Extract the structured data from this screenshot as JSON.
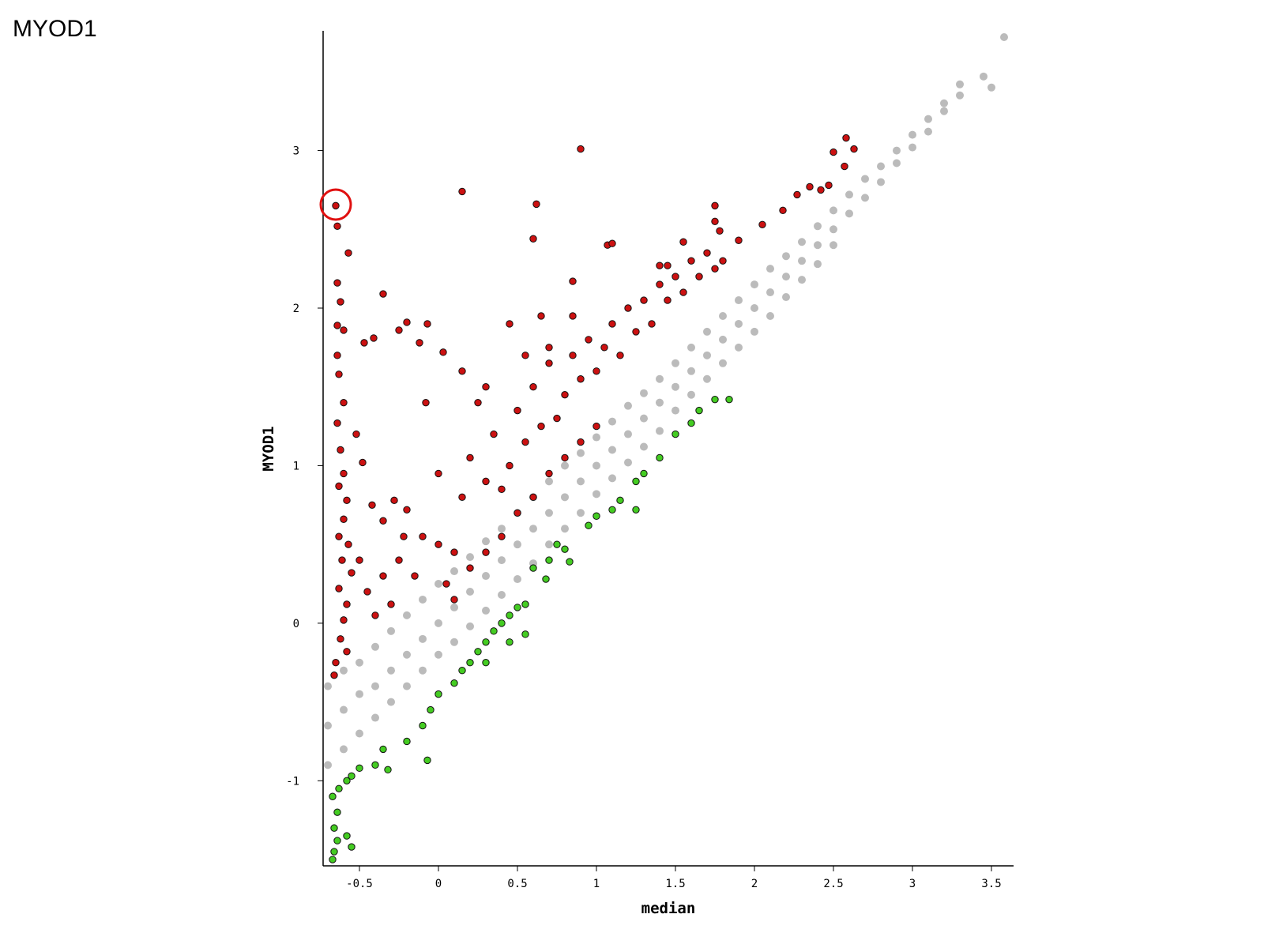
{
  "title": "MYOD1",
  "chart_data": {
    "type": "scatter",
    "x_label": "median",
    "y_label": "MYOD1",
    "xlim": [
      -0.73,
      3.64
    ],
    "ylim": [
      -1.54,
      3.76
    ],
    "xticks": [
      -0.5,
      0,
      0.5,
      1,
      1.5,
      2,
      2.5,
      3,
      3.5
    ],
    "yticks": [
      -1,
      0,
      1,
      2,
      3
    ],
    "series": [
      {
        "color": "#bbbbbb",
        "x": [
          -0.7,
          -0.7,
          -0.7,
          -0.6,
          -0.6,
          -0.6,
          -0.5,
          -0.5,
          -0.5,
          -0.4,
          -0.4,
          -0.4,
          -0.3,
          -0.3,
          -0.3,
          -0.2,
          -0.2,
          -0.2,
          -0.1,
          -0.1,
          -0.1,
          0,
          0,
          0,
          0.1,
          0.1,
          0.1,
          0.2,
          0.2,
          0.2,
          0.3,
          0.3,
          0.3,
          0.4,
          0.4,
          0.4,
          0.5,
          0.5,
          0.5,
          0.6,
          0.6,
          0.6,
          0.7,
          0.7,
          0.7,
          0.8,
          0.8,
          0.8,
          0.9,
          0.9,
          0.9,
          1.0,
          1.0,
          1.0,
          1.1,
          1.1,
          1.1,
          1.2,
          1.2,
          1.2,
          1.3,
          1.3,
          1.3,
          1.4,
          1.4,
          1.4,
          1.5,
          1.5,
          1.5,
          1.6,
          1.6,
          1.6,
          1.7,
          1.7,
          1.7,
          1.8,
          1.8,
          1.8,
          1.9,
          1.9,
          1.9,
          2.0,
          2.0,
          2.0,
          2.1,
          2.1,
          2.1,
          2.2,
          2.2,
          2.2,
          2.3,
          2.3,
          2.3,
          2.4,
          2.4,
          2.4,
          2.5,
          2.5,
          2.5,
          2.6,
          2.6,
          2.7,
          2.7,
          2.8,
          2.8,
          2.9,
          2.9,
          3.0,
          3.0,
          3.1,
          3.1,
          3.2,
          3.2,
          3.3,
          3.3,
          3.45,
          3.5,
          3.58
        ],
        "values": [
          -0.4,
          -0.65,
          -0.9,
          -0.3,
          -0.55,
          -0.8,
          -0.25,
          -0.45,
          -0.7,
          -0.15,
          -0.4,
          -0.6,
          -0.05,
          -0.3,
          -0.5,
          0.05,
          -0.2,
          -0.4,
          0.15,
          -0.1,
          -0.3,
          0.25,
          0.0,
          -0.2,
          0.33,
          0.1,
          -0.12,
          0.42,
          0.2,
          -0.02,
          0.52,
          0.3,
          0.08,
          0.6,
          0.4,
          0.18,
          0.7,
          0.5,
          0.28,
          0.8,
          0.6,
          0.38,
          0.9,
          0.7,
          0.5,
          1.0,
          0.8,
          0.6,
          1.08,
          0.9,
          0.7,
          1.18,
          1.0,
          0.82,
          1.28,
          1.1,
          0.92,
          1.38,
          1.2,
          1.02,
          1.46,
          1.3,
          1.12,
          1.55,
          1.4,
          1.22,
          1.65,
          1.5,
          1.35,
          1.75,
          1.6,
          1.45,
          1.85,
          1.7,
          1.55,
          1.95,
          1.8,
          1.65,
          2.05,
          1.9,
          1.75,
          2.15,
          2.0,
          1.85,
          2.25,
          2.1,
          1.95,
          2.33,
          2.2,
          2.07,
          2.42,
          2.3,
          2.18,
          2.52,
          2.4,
          2.28,
          2.62,
          2.5,
          2.4,
          2.72,
          2.6,
          2.82,
          2.7,
          2.9,
          2.8,
          3.0,
          2.92,
          3.1,
          3.02,
          3.2,
          3.12,
          3.3,
          3.25,
          3.42,
          3.35,
          3.47,
          3.4,
          3.72
        ]
      },
      {
        "color": "#cc1111",
        "x": [
          -0.65,
          -0.64,
          -0.57,
          -0.64,
          -0.62,
          -0.64,
          -0.6,
          -0.35,
          -0.47,
          -0.41,
          -0.25,
          -0.2,
          -0.07,
          -0.12,
          0.03,
          0.15,
          0.62,
          0.6,
          0.9,
          0.85,
          1.07,
          1.1,
          1.55,
          1.75,
          1.75,
          1.78,
          1.9,
          2.05,
          2.18,
          2.27,
          2.35,
          2.42,
          2.5,
          2.58,
          2.63,
          2.57,
          2.47,
          1.4,
          1.45,
          -0.64,
          -0.63,
          -0.6,
          -0.64,
          -0.62,
          -0.6,
          -0.63,
          -0.58,
          -0.6,
          -0.63,
          -0.57,
          -0.61,
          -0.55,
          -0.63,
          -0.58,
          -0.6,
          -0.62,
          -0.58,
          -0.65,
          -0.66,
          -0.52,
          -0.48,
          -0.42,
          -0.35,
          -0.28,
          -0.2,
          -0.1,
          -0.5,
          -0.45,
          -0.4,
          -0.35,
          -0.3,
          -0.25,
          -0.15,
          0,
          0.1,
          0.15,
          0.2,
          0.25,
          0.3,
          0.35,
          0.4,
          0.45,
          0.5,
          0.55,
          0.6,
          0.65,
          0.7,
          0.75,
          0.8,
          0.85,
          0.9,
          0.95,
          1.0,
          1.05,
          1.1,
          1.15,
          1.2,
          1.25,
          1.3,
          1.35,
          1.4,
          1.45,
          1.5,
          1.55,
          1.6,
          1.65,
          1.7,
          1.75,
          1.8,
          0.05,
          0.1,
          0.2,
          0.3,
          0.4,
          0.5,
          0.6,
          0.7,
          0.8,
          0.9,
          1.0,
          0.15,
          0.3,
          0.45,
          0.55,
          -0.08,
          0,
          -0.22,
          0.65,
          0.7,
          0.85
        ],
        "values": [
          2.65,
          2.52,
          2.35,
          2.16,
          2.04,
          1.89,
          1.86,
          2.09,
          1.78,
          1.81,
          1.86,
          1.91,
          1.9,
          1.78,
          1.72,
          2.74,
          2.66,
          2.44,
          3.01,
          2.17,
          2.4,
          2.41,
          2.42,
          2.65,
          2.55,
          2.49,
          2.43,
          2.53,
          2.62,
          2.72,
          2.77,
          2.75,
          2.99,
          3.08,
          3.01,
          2.9,
          2.78,
          2.27,
          2.27,
          1.7,
          1.58,
          1.4,
          1.27,
          1.1,
          0.95,
          0.87,
          0.78,
          0.66,
          0.55,
          0.5,
          0.4,
          0.32,
          0.22,
          0.12,
          0.02,
          -0.1,
          -0.18,
          -0.25,
          -0.33,
          1.2,
          1.02,
          0.75,
          0.65,
          0.78,
          0.72,
          0.55,
          0.4,
          0.2,
          0.05,
          0.3,
          0.12,
          0.4,
          0.3,
          0.5,
          0.45,
          0.8,
          1.05,
          1.4,
          0.9,
          1.2,
          0.85,
          1.0,
          1.35,
          1.15,
          1.5,
          1.25,
          1.65,
          1.3,
          1.45,
          1.7,
          1.55,
          1.8,
          1.6,
          1.75,
          1.9,
          1.7,
          2.0,
          1.85,
          2.05,
          1.9,
          2.15,
          2.05,
          2.2,
          2.1,
          2.3,
          2.2,
          2.35,
          2.25,
          2.3,
          0.25,
          0.15,
          0.35,
          0.45,
          0.55,
          0.7,
          0.8,
          0.95,
          1.05,
          1.15,
          1.25,
          1.6,
          1.5,
          1.9,
          1.7,
          1.4,
          0.95,
          0.55,
          1.95,
          1.75,
          1.95
        ]
      },
      {
        "color": "#44cc22",
        "x": [
          -0.67,
          -0.66,
          -0.64,
          -0.66,
          -0.64,
          -0.67,
          -0.63,
          -0.58,
          -0.55,
          -0.58,
          -0.55,
          -0.5,
          -0.4,
          -0.32,
          -0.07,
          -0.35,
          -0.2,
          -0.1,
          -0.05,
          0,
          0.1,
          0.15,
          0.2,
          0.25,
          0.3,
          0.35,
          0.4,
          0.45,
          0.5,
          0.55,
          0.45,
          0.3,
          0.6,
          0.7,
          0.75,
          0.8,
          0.95,
          1.0,
          1.1,
          1.15,
          1.25,
          1.25,
          1.3,
          1.4,
          1.5,
          1.6,
          1.65,
          1.75,
          1.84,
          0.68,
          0.83,
          0.55
        ],
        "values": [
          -1.5,
          -1.45,
          -1.38,
          -1.3,
          -1.2,
          -1.1,
          -1.05,
          -1.35,
          -1.42,
          -1.0,
          -0.97,
          -0.92,
          -0.9,
          -0.93,
          -0.87,
          -0.8,
          -0.75,
          -0.65,
          -0.55,
          -0.45,
          -0.38,
          -0.3,
          -0.25,
          -0.18,
          -0.12,
          -0.05,
          0.0,
          0.05,
          0.1,
          0.12,
          -0.12,
          -0.25,
          0.35,
          0.4,
          0.5,
          0.47,
          0.62,
          0.68,
          0.72,
          0.78,
          0.72,
          0.9,
          0.95,
          1.05,
          1.2,
          1.27,
          1.35,
          1.42,
          1.42,
          0.28,
          0.39,
          -0.07
        ]
      }
    ]
  }
}
